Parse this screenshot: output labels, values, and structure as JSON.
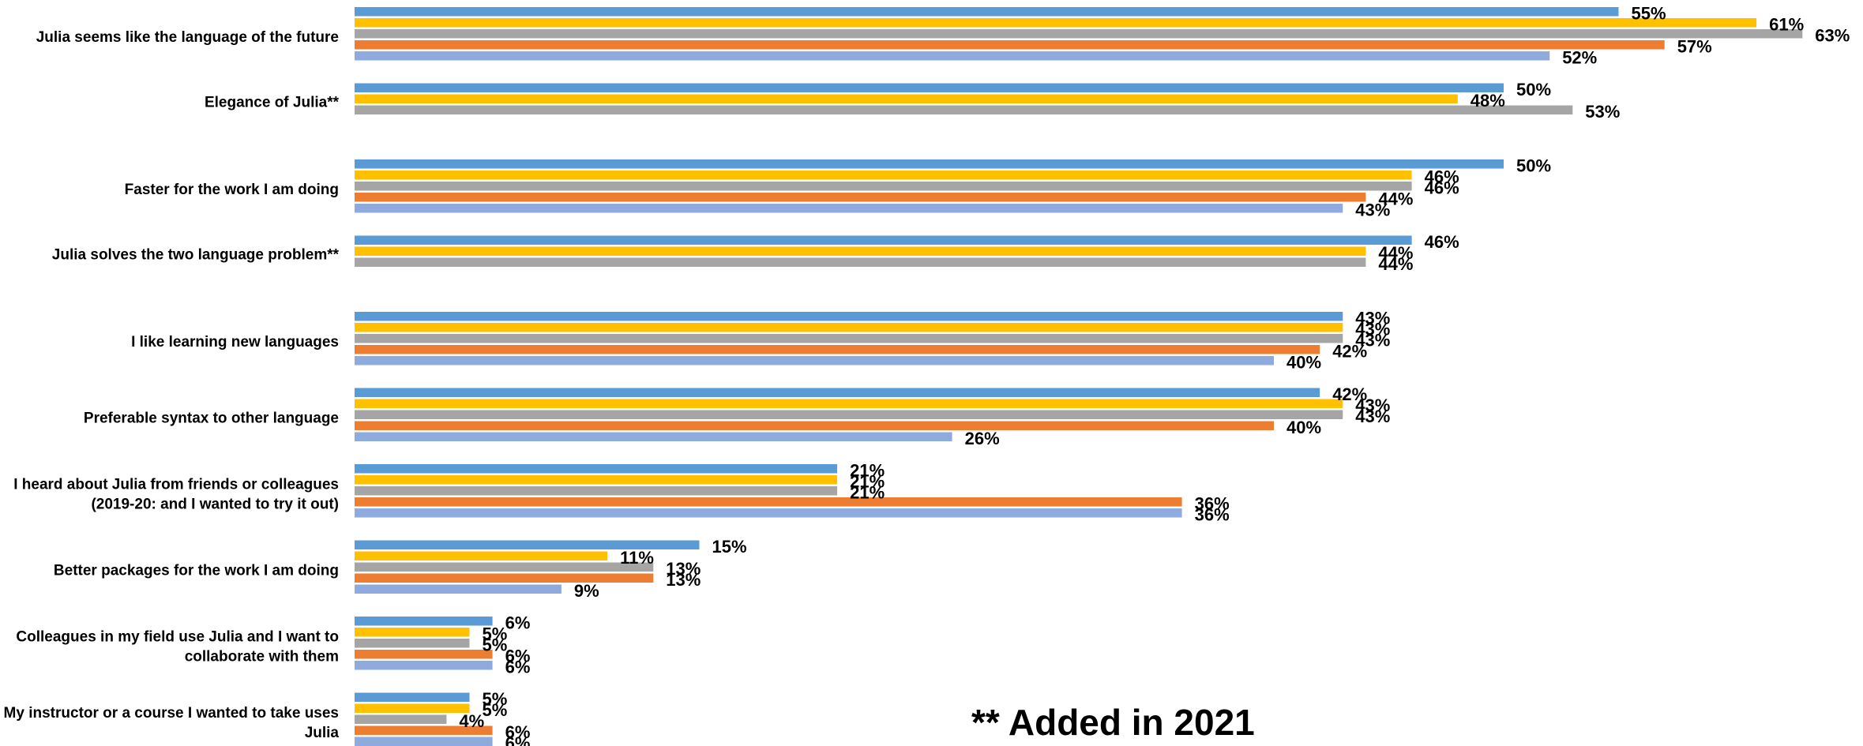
{
  "chart_data": {
    "type": "bar",
    "orientation": "horizontal",
    "unit": "%",
    "xlim": [
      0,
      65
    ],
    "grid": false,
    "legend": "none",
    "categories": [
      [
        "Julia seems like the language of the future"
      ],
      [
        "Elegance of Julia**"
      ],
      [
        "Faster for the work I am doing"
      ],
      [
        "Julia solves the two language problem**"
      ],
      [
        "I like learning new languages"
      ],
      [
        "Preferable syntax to other language"
      ],
      [
        "I heard about Julia from friends or colleagues",
        "(2019-20: and I wanted to try it out)"
      ],
      [
        "Better packages for the work I am doing"
      ],
      [
        "Colleagues in my field use Julia and I want to",
        "collaborate with them"
      ],
      [
        "My instructor or a course I wanted to take uses",
        "Julia"
      ]
    ],
    "series": [
      {
        "color": "#5B9BD5",
        "values": [
          55,
          50,
          50,
          46,
          43,
          42,
          21,
          15,
          6,
          5
        ]
      },
      {
        "color": "#FFC000",
        "values": [
          61,
          48,
          46,
          44,
          43,
          43,
          21,
          11,
          5,
          5
        ]
      },
      {
        "color": "#A5A5A5",
        "values": [
          63,
          53,
          46,
          44,
          43,
          43,
          21,
          13,
          5,
          4
        ]
      },
      {
        "color": "#ED7D31",
        "values": [
          57,
          null,
          44,
          null,
          42,
          40,
          36,
          13,
          6,
          6
        ]
      },
      {
        "color": "#8FAADC",
        "values": [
          52,
          null,
          43,
          null,
          40,
          26,
          36,
          9,
          6,
          6
        ]
      }
    ]
  },
  "annotation": "** Added in 2021"
}
